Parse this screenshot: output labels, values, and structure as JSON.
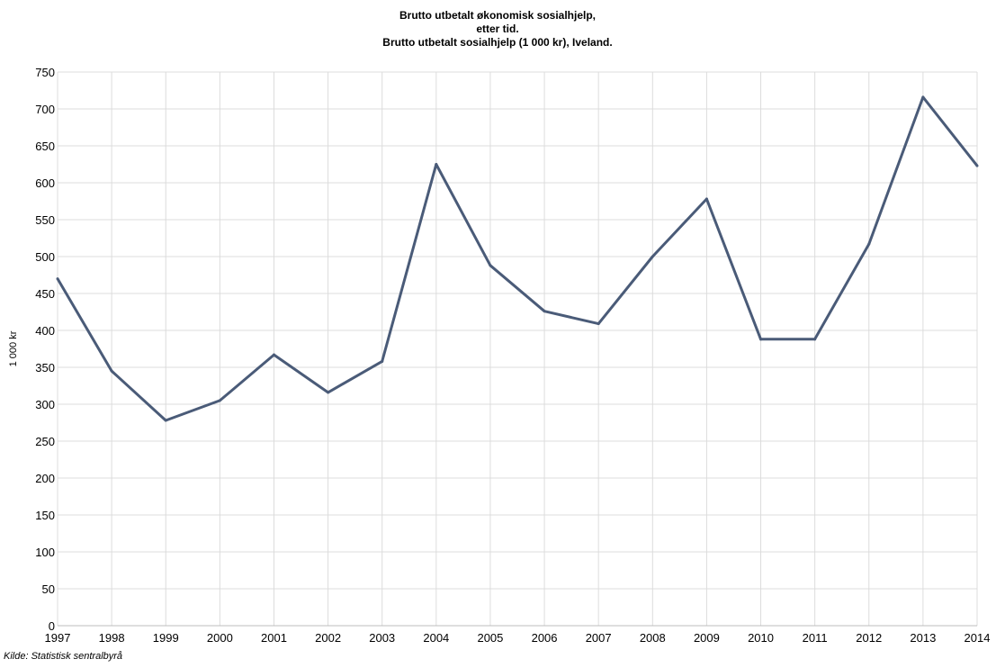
{
  "chart_data": {
    "type": "line",
    "title_lines": [
      "Brutto utbetalt økonomisk sosialhjelp,",
      "etter tid.",
      "Brutto utbetalt sosialhjelp (1 000 kr), Iveland."
    ],
    "xlabel": "",
    "ylabel": "1 000 kr",
    "ylim": [
      0,
      750
    ],
    "yticks": [
      0,
      50,
      100,
      150,
      200,
      250,
      300,
      350,
      400,
      450,
      500,
      550,
      600,
      650,
      700,
      750
    ],
    "grid": true,
    "line_color": "#4a5b78",
    "categories": [
      "1997",
      "1998",
      "1999",
      "2000",
      "2001",
      "2002",
      "2003",
      "2004",
      "2005",
      "2006",
      "2007",
      "2008",
      "2009",
      "2010",
      "2011",
      "2012",
      "2013",
      "2014"
    ],
    "series": [
      {
        "values": [
          470,
          345,
          278,
          305,
          367,
          316,
          358,
          625,
          488,
          426,
          409,
          500,
          578,
          388,
          388,
          517,
          716,
          623
        ]
      }
    ]
  },
  "source": "Kilde: Statistisk sentralbyrå"
}
